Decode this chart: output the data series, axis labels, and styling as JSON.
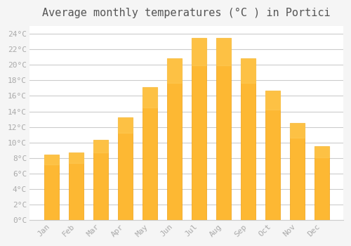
{
  "months": [
    "Jan",
    "Feb",
    "Mar",
    "Apr",
    "May",
    "Jun",
    "Jul",
    "Aug",
    "Sep",
    "Oct",
    "Nov",
    "Dec"
  ],
  "temperatures": [
    8.4,
    8.7,
    10.3,
    13.2,
    17.1,
    20.8,
    23.5,
    23.5,
    20.8,
    16.7,
    12.5,
    9.5
  ],
  "bar_color_main": "#FDB833",
  "bar_color_edge": "#F0A010",
  "background_color": "#F5F5F5",
  "plot_bg_color": "#FFFFFF",
  "grid_color": "#CCCCCC",
  "title": "Average monthly temperatures (°C ) in Portici",
  "title_fontsize": 11,
  "tick_label_color": "#AAAAAA",
  "ylim": [
    0,
    25
  ],
  "yticks": [
    0,
    2,
    4,
    6,
    8,
    10,
    12,
    14,
    16,
    18,
    20,
    22,
    24
  ],
  "ytick_labels": [
    "0°C",
    "2°C",
    "4°C",
    "6°C",
    "8°C",
    "10°C",
    "12°C",
    "14°C",
    "16°C",
    "18°C",
    "20°C",
    "22°C",
    "24°C"
  ]
}
